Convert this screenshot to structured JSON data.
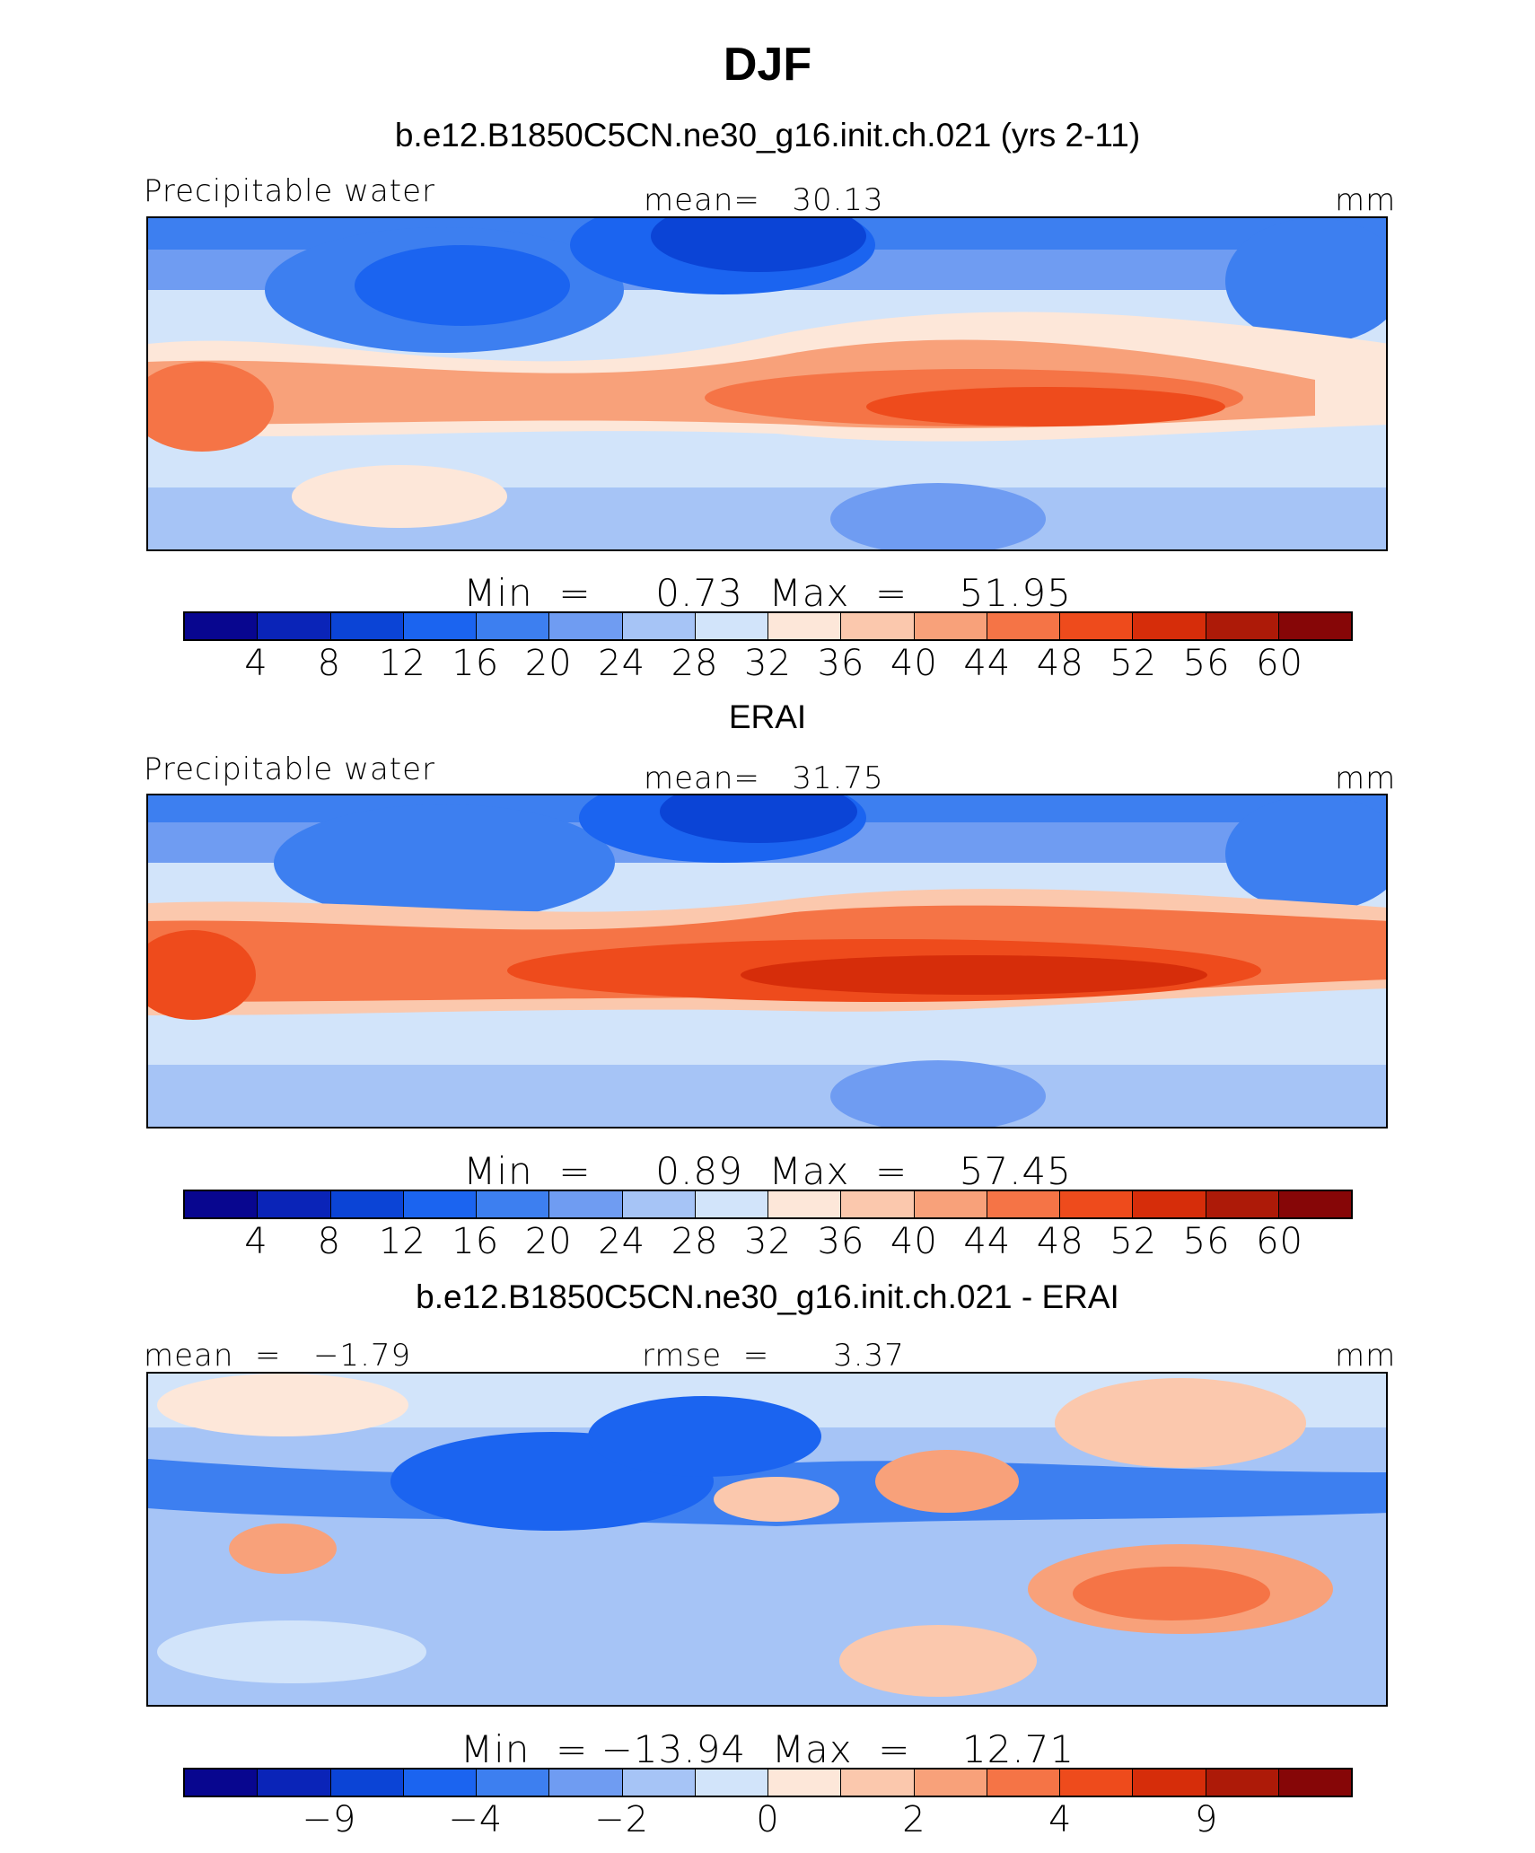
{
  "figure": {
    "title": "DJF"
  },
  "panels": [
    {
      "title": "b.e12.B1850C5CN.ne30_g16.init.ch.021 (yrs 2-11)",
      "left_label": "Precipitable water",
      "center_label": "mean=   30.13",
      "right_label": "mm",
      "minmax": "Min  =     0.73  Max  =    51.95"
    },
    {
      "title": "ERAI",
      "left_label": "Precipitable water",
      "center_label": "mean=   31.75",
      "right_label": "mm",
      "minmax": "Min  =     0.89  Max  =    57.45"
    },
    {
      "title": "b.e12.B1850C5CN.ne30_g16.init.ch.021 - ERAI",
      "left_label": "mean  =   −1.79",
      "center_label": "rmse  =      3.37",
      "right_label": "mm",
      "minmax": "Min  = −13.94  Max  =    12.71"
    }
  ],
  "colors": {
    "scale": [
      "#08068f",
      "#0a24b8",
      "#0b44d6",
      "#1b64f0",
      "#3d7ff0",
      "#6f9cf2",
      "#a6c4f6",
      "#d2e4fa",
      "#fde7d9",
      "#fbc8ad",
      "#f8a17a",
      "#f57446",
      "#ee4b1c",
      "#d62d0a",
      "#ad1a08",
      "#860607"
    ]
  },
  "chart_data": [
    {
      "type": "heatmap",
      "title": "b.e12.B1850C5CN.ne30_g16.init.ch.021 (yrs 2-11)",
      "variable": "Precipitable water",
      "units": "mm",
      "mean": 30.13,
      "min": 0.73,
      "max": 51.95,
      "colorbar_ticks": [
        "4",
        "8",
        "12",
        "16",
        "20",
        "24",
        "28",
        "32",
        "36",
        "40",
        "44",
        "48",
        "52",
        "56",
        "60"
      ]
    },
    {
      "type": "heatmap",
      "title": "ERAI",
      "variable": "Precipitable water",
      "units": "mm",
      "mean": 31.75,
      "min": 0.89,
      "max": 57.45,
      "colorbar_ticks": [
        "4",
        "8",
        "12",
        "16",
        "20",
        "24",
        "28",
        "32",
        "36",
        "40",
        "44",
        "48",
        "52",
        "56",
        "60"
      ]
    },
    {
      "type": "heatmap",
      "title": "b.e12.B1850C5CN.ne30_g16.init.ch.021 - ERAI",
      "variable": "Precipitable water difference",
      "units": "mm",
      "mean": -1.79,
      "rmse": 3.37,
      "min": -13.94,
      "max": 12.71,
      "colorbar_ticks": [
        "−9",
        "−4",
        "−2",
        "0",
        "2",
        "4",
        "9"
      ]
    }
  ]
}
